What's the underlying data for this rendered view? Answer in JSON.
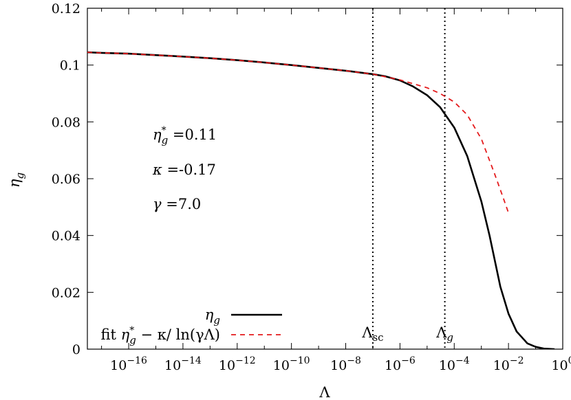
{
  "chart_data": {
    "type": "line",
    "title": "",
    "xlabel": "Λ",
    "ylabel": "η_g",
    "xscale": "log",
    "xlim": [
      3e-18,
      1.0
    ],
    "ylim": [
      0,
      0.12
    ],
    "grid": false,
    "legend_position": "bottom-left",
    "x_tick_labels": [
      {
        "value": 1e-16,
        "base": "10",
        "exp": "−16"
      },
      {
        "value": 1e-14,
        "base": "10",
        "exp": "−14"
      },
      {
        "value": 1e-12,
        "base": "10",
        "exp": "−12"
      },
      {
        "value": 1e-10,
        "base": "10",
        "exp": "−10"
      },
      {
        "value": 1e-08,
        "base": "10",
        "exp": "−8"
      },
      {
        "value": 1e-06,
        "base": "10",
        "exp": "−6"
      },
      {
        "value": 0.0001,
        "base": "10",
        "exp": "−4"
      },
      {
        "value": 0.01,
        "base": "10",
        "exp": "−2"
      },
      {
        "value": 1,
        "base": "10",
        "exp": "0"
      }
    ],
    "y_tick_labels": [
      {
        "value": 0,
        "text": "0"
      },
      {
        "value": 0.02,
        "text": "0.02"
      },
      {
        "value": 0.04,
        "text": "0.04"
      },
      {
        "value": 0.06,
        "text": "0.06"
      },
      {
        "value": 0.08,
        "text": "0.08"
      },
      {
        "value": 0.1,
        "text": "0.1"
      },
      {
        "value": 0.12,
        "text": "0.12"
      }
    ],
    "series": [
      {
        "name": "η_g",
        "color": "#000000",
        "style": "solid",
        "x": [
          3e-18,
          1e-17,
          1e-16,
          1e-15,
          1e-14,
          1e-13,
          1e-12,
          1e-11,
          1e-10,
          1e-09,
          1e-08,
          1e-07,
          3e-07,
          1e-06,
          3e-06,
          1e-05,
          3e-05,
          0.0001,
          0.0003,
          0.001,
          0.002,
          0.005,
          0.01,
          0.02,
          0.05,
          0.1,
          0.2,
          0.3,
          0.5
        ],
        "y": [
          0.1045,
          0.1043,
          0.104,
          0.1035,
          0.103,
          0.1024,
          0.1017,
          0.1009,
          0.1,
          0.099,
          0.098,
          0.0968,
          0.096,
          0.0946,
          0.0925,
          0.0894,
          0.0852,
          0.078,
          0.068,
          0.052,
          0.04,
          0.022,
          0.0125,
          0.0062,
          0.002,
          0.0008,
          0.0002,
          0.0001,
          0.0
        ]
      },
      {
        "name": "fit η_g* − κ/ ln(γΛ)",
        "color": "#e41a1c",
        "style": "dashed",
        "x": [
          3e-18,
          1e-17,
          1e-16,
          1e-15,
          1e-14,
          1e-13,
          1e-12,
          1e-11,
          1e-10,
          1e-09,
          1e-08,
          1e-07,
          1e-06,
          1e-05,
          3e-05,
          0.0001,
          0.0003,
          0.001,
          0.003,
          0.006,
          0.01
        ],
        "y": [
          0.1045,
          0.1043,
          0.104,
          0.1035,
          0.103,
          0.1024,
          0.1017,
          0.1009,
          0.1,
          0.099,
          0.098,
          0.0968,
          0.0948,
          0.092,
          0.09,
          0.087,
          0.0825,
          0.074,
          0.062,
          0.054,
          0.048
        ]
      }
    ],
    "vlines": [
      {
        "x": 1e-07,
        "label": "Λ",
        "sub": "sc"
      },
      {
        "x": 4.5e-05,
        "label": "Λ",
        "sub": "g"
      }
    ],
    "annotations": [
      {
        "sym": "η",
        "sub": "g",
        "sup": "*",
        "text": "=0.11"
      },
      {
        "sym": "κ",
        "sub": "",
        "sup": "",
        "text": "=-0.17"
      },
      {
        "sym": "γ",
        "sub": "",
        "sup": "",
        "text": "=7.0"
      }
    ],
    "legend": [
      {
        "sym": "η",
        "sub": "g",
        "style": "solid",
        "color": "#000000"
      },
      {
        "pre": "fit ",
        "sym": "η",
        "sub": "g",
        "sup": "*",
        "post": " − κ/ ln(γΛ)",
        "style": "dashed",
        "color": "#e41a1c"
      }
    ]
  }
}
